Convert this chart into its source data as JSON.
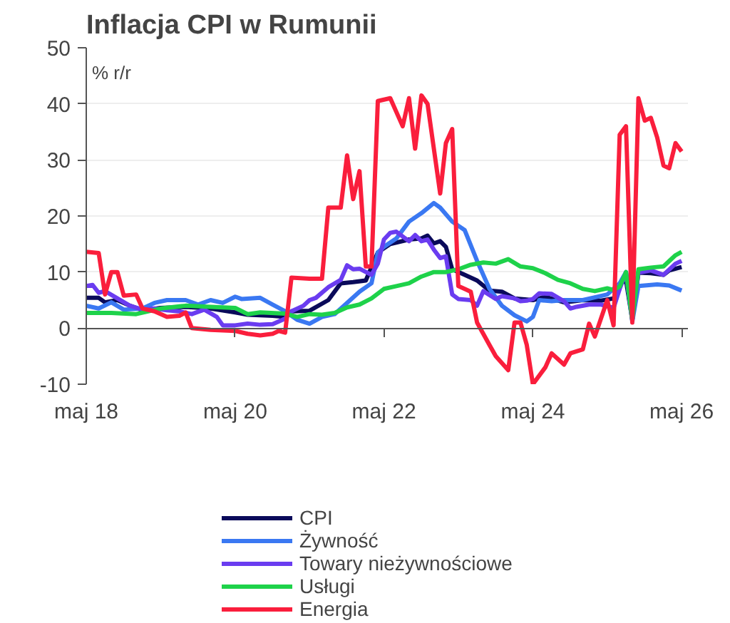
{
  "chart_data": {
    "type": "line",
    "title": "Inflacja CPI w Rumunii",
    "ylabel": "% r/r",
    "xlim": [
      "2018-05",
      "2026-06"
    ],
    "ylim": [
      -10,
      50
    ],
    "xticks": [
      {
        "value": "2018-05",
        "label": "maj 18"
      },
      {
        "value": "2020-05",
        "label": "maj 20"
      },
      {
        "value": "2022-05",
        "label": "maj 22"
      },
      {
        "value": "2024-05",
        "label": "maj 24"
      },
      {
        "value": "2026-05",
        "label": "maj 26"
      }
    ],
    "yticks": [
      -10,
      0,
      10,
      20,
      30,
      40,
      50
    ],
    "grid": "y",
    "legend": "bottom",
    "marker": "none",
    "line_style": "solid",
    "series": [
      {
        "name": "CPI",
        "color": "#0a0a5a",
        "x": [
          "2018-05",
          "2018-07",
          "2018-08",
          "2018-10",
          "2018-12",
          "2019-02",
          "2019-05",
          "2019-09",
          "2020-01",
          "2020-05",
          "2020-07",
          "2020-11",
          "2021-01",
          "2021-02",
          "2021-05",
          "2021-08",
          "2021-10",
          "2021-12",
          "2022-02",
          "2022-04",
          "2022-06",
          "2022-09",
          "2022-11",
          "2022-12",
          "2023-01",
          "2023-02",
          "2023-03",
          "2023-04",
          "2023-06",
          "2023-08",
          "2023-10",
          "2023-12",
          "2024-02",
          "2024-03",
          "2024-05",
          "2024-07",
          "2024-10",
          "2025-01",
          "2025-04",
          "2025-06",
          "2025-07",
          "2025-08",
          "2025-09",
          "2025-10",
          "2025-12",
          "2026-02",
          "2026-03",
          "2026-05"
        ],
        "values": [
          5.4,
          5.4,
          4.6,
          5,
          4,
          3.2,
          3.6,
          3.8,
          3.5,
          2.8,
          2.4,
          2.2,
          2,
          3,
          3.1,
          5,
          8,
          8.2,
          8.5,
          13.5,
          15,
          15.8,
          16,
          16.5,
          15.1,
          15.5,
          14.5,
          10.5,
          9.5,
          8.5,
          6.7,
          6.5,
          5.3,
          5.2,
          5,
          5.6,
          4.6,
          5,
          4.9,
          5.3,
          7.9,
          8.5,
          1.5,
          9.9,
          9.8,
          9.5,
          10.3,
          10.9
        ]
      },
      {
        "name": "Żywność",
        "color": "#3a78f2",
        "x": [
          "2018-05",
          "2018-07",
          "2018-09",
          "2018-11",
          "2019-02",
          "2019-04",
          "2019-06",
          "2019-09",
          "2019-11",
          "2020-01",
          "2020-03",
          "2020-05",
          "2020-06",
          "2020-09",
          "2020-11",
          "2021-01",
          "2021-03",
          "2021-05",
          "2021-07",
          "2021-09",
          "2021-11",
          "2022-01",
          "2022-03",
          "2022-04",
          "2022-05",
          "2022-07",
          "2022-09",
          "2022-11",
          "2023-01",
          "2023-02",
          "2023-04",
          "2023-06",
          "2023-08",
          "2023-10",
          "2023-12",
          "2024-02",
          "2024-04",
          "2024-05",
          "2024-06",
          "2024-08",
          "2024-10",
          "2025-01",
          "2025-03",
          "2025-05",
          "2025-07",
          "2025-08",
          "2025-09",
          "2025-10",
          "2026-01",
          "2026-03",
          "2026-05"
        ],
        "values": [
          4,
          3.5,
          4.6,
          3.3,
          3.5,
          4.5,
          5,
          5,
          4.2,
          5,
          4.5,
          5.6,
          5.2,
          5.4,
          4.2,
          3,
          1.5,
          0.8,
          2,
          2.5,
          4.5,
          6.5,
          8,
          13.5,
          14.5,
          16,
          19,
          20.5,
          22.3,
          21.5,
          19,
          17.5,
          12,
          7,
          4,
          2.3,
          1.2,
          2,
          5,
          4.8,
          5,
          5,
          5.5,
          6,
          8,
          10,
          1.2,
          7.5,
          7.8,
          7.6,
          6.7
        ]
      },
      {
        "name": "Towary nieżywnościowe",
        "color": "#6a3cf0",
        "x": [
          "2018-05",
          "2018-06",
          "2018-07",
          "2018-08",
          "2018-10",
          "2018-12",
          "2019-02",
          "2019-04",
          "2019-06",
          "2019-08",
          "2019-10",
          "2019-12",
          "2020-02",
          "2020-03",
          "2020-05",
          "2020-07",
          "2020-09",
          "2020-11",
          "2021-01",
          "2021-02",
          "2021-04",
          "2021-05",
          "2021-06",
          "2021-08",
          "2021-10",
          "2021-11",
          "2021-12",
          "2022-01",
          "2022-03",
          "2022-04",
          "2022-05",
          "2022-06",
          "2022-07",
          "2022-09",
          "2022-10",
          "2022-11",
          "2022-12",
          "2023-01",
          "2023-02",
          "2023-03",
          "2023-04",
          "2023-05",
          "2023-07",
          "2023-08",
          "2023-09",
          "2023-11",
          "2023-12",
          "2024-02",
          "2024-03",
          "2024-04",
          "2024-05",
          "2024-06",
          "2024-08",
          "2024-10",
          "2024-11",
          "2024-12",
          "2025-02",
          "2025-04",
          "2025-06",
          "2025-07",
          "2025-08",
          "2025-09",
          "2025-10",
          "2025-12",
          "2026-02",
          "2026-04",
          "2026-05"
        ],
        "values": [
          7.5,
          7.7,
          6.3,
          6.6,
          5.3,
          4,
          3.3,
          3.5,
          3.2,
          3,
          2.5,
          3.3,
          2,
          0.5,
          0.5,
          0.8,
          0.6,
          0.7,
          1.7,
          3,
          4,
          5,
          5.4,
          7.3,
          8.6,
          11.2,
          10.5,
          10.6,
          9.5,
          11.5,
          15.8,
          17,
          17.2,
          15.5,
          16.6,
          15.5,
          15.8,
          14,
          12.5,
          12.8,
          6,
          5.2,
          5,
          4,
          6.6,
          5.2,
          5.7,
          5.3,
          4.8,
          4.9,
          5.2,
          6.2,
          6.1,
          4.8,
          3.5,
          3.8,
          4.2,
          4.2,
          3.6,
          7,
          9.9,
          1.5,
          9.9,
          10.3,
          9.5,
          11.5,
          12
        ]
      },
      {
        "name": "Usługi",
        "color": "#1ed24a",
        "x": [
          "2018-05",
          "2018-09",
          "2019-01",
          "2019-05",
          "2019-09",
          "2020-01",
          "2020-05",
          "2020-07",
          "2020-09",
          "2021-01",
          "2021-03",
          "2021-05",
          "2021-07",
          "2021-09",
          "2021-11",
          "2022-01",
          "2022-03",
          "2022-05",
          "2022-07",
          "2022-09",
          "2022-11",
          "2023-01",
          "2023-03",
          "2023-05",
          "2023-07",
          "2023-09",
          "2023-11",
          "2024-01",
          "2024-03",
          "2024-05",
          "2024-07",
          "2024-09",
          "2024-11",
          "2025-01",
          "2025-03",
          "2025-05",
          "2025-06",
          "2025-07",
          "2025-08",
          "2025-09",
          "2025-10",
          "2025-12",
          "2026-02",
          "2026-04",
          "2026-05"
        ],
        "values": [
          2.7,
          2.7,
          2.5,
          3.5,
          4,
          3.8,
          3.6,
          2.5,
          2.8,
          2.6,
          2,
          2.5,
          2.4,
          2.7,
          3.7,
          4.2,
          5.3,
          7,
          7.5,
          8,
          9.2,
          10,
          10,
          10.5,
          11.3,
          11.7,
          11.5,
          12.3,
          11,
          10.7,
          9.8,
          8.6,
          8,
          7,
          6.6,
          7.1,
          6.8,
          7.4,
          10,
          1.5,
          10.5,
          10.8,
          11,
          13,
          13.6
        ]
      },
      {
        "name": "Energia",
        "color": "#fa1e3c",
        "x": [
          "2018-05",
          "2018-07",
          "2018-08",
          "2018-09",
          "2018-10",
          "2018-11",
          "2019-01",
          "2019-02",
          "2019-04",
          "2019-06",
          "2019-08",
          "2019-09",
          "2019-10",
          "2020-01",
          "2020-05",
          "2020-07",
          "2020-09",
          "2020-11",
          "2020-12",
          "2021-01",
          "2021-02",
          "2021-05",
          "2021-07",
          "2021-08",
          "2021-10",
          "2021-11",
          "2021-12",
          "2022-01",
          "2022-02",
          "2022-03",
          "2022-04",
          "2022-06",
          "2022-08",
          "2022-09",
          "2022-10",
          "2022-11",
          "2022-12",
          "2023-02",
          "2023-03",
          "2023-04",
          "2023-05",
          "2023-06",
          "2023-07",
          "2023-08",
          "2023-10",
          "2023-11",
          "2024-01",
          "2024-02",
          "2024-03",
          "2024-04",
          "2024-05",
          "2024-07",
          "2024-08",
          "2024-10",
          "2024-11",
          "2025-01",
          "2025-02",
          "2025-03",
          "2025-05",
          "2025-06",
          "2025-07",
          "2025-08",
          "2025-09",
          "2025-10",
          "2025-11",
          "2025-12",
          "2026-01",
          "2026-02",
          "2026-03",
          "2026-04",
          "2026-05"
        ],
        "values": [
          13.6,
          13.4,
          6,
          10,
          10,
          5.8,
          6,
          3.5,
          3,
          2,
          2.2,
          2.8,
          0,
          -0.3,
          -0.5,
          -1,
          -1.3,
          -1,
          -0.5,
          -0.8,
          9,
          8.8,
          8.8,
          21.5,
          21.5,
          30.8,
          23,
          28,
          11,
          11,
          40.5,
          41,
          36,
          41,
          32,
          41.5,
          40,
          24,
          33,
          35.5,
          7.5,
          7,
          6.5,
          1,
          -3,
          -5,
          -7.5,
          1,
          1,
          -3,
          -10,
          -7,
          -4.5,
          -6.5,
          -4.5,
          -3.8,
          0.8,
          -1.5,
          5,
          0.5,
          34.5,
          36,
          1,
          41,
          37,
          37.5,
          34,
          29,
          28.5,
          33,
          31.5
        ]
      }
    ]
  }
}
